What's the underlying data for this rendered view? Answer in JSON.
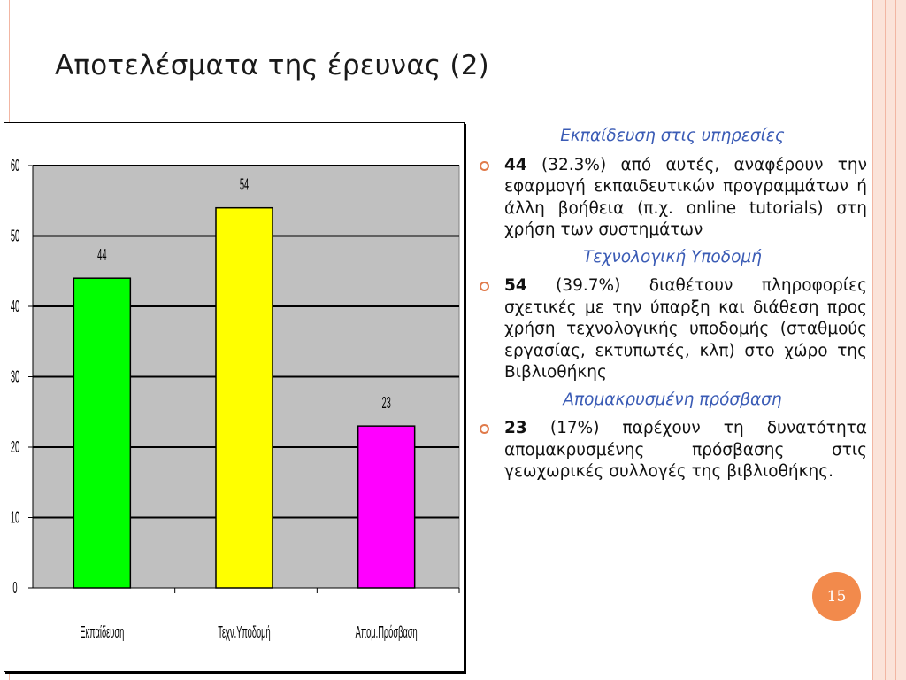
{
  "slide": {
    "title": "Αποτελέσματα της έρευνας (2)",
    "page_number": "15",
    "accent_color": "#f28a4c",
    "heading_color": "#3a5bb5"
  },
  "chart_data": {
    "type": "bar",
    "categories": [
      "Εκπαίδευση",
      "Τεχν.Υποδομή",
      "Απομ.Πρόσβαση"
    ],
    "values": [
      44,
      54,
      23
    ],
    "colors": [
      "#00ff00",
      "#ffff00",
      "#ff00ff"
    ],
    "data_labels": [
      "44",
      "54",
      "23"
    ],
    "y_ticks": [
      "0",
      "10",
      "20",
      "30",
      "40",
      "50",
      "60"
    ],
    "ylim": [
      0,
      60
    ],
    "plot_background": "#c0c0c0",
    "grid": true,
    "legend": "none"
  },
  "sections": [
    {
      "heading": "Εκπαίδευση στις υπηρεσίες",
      "number": "44",
      "text": " (32.3%) από αυτές, αναφέρουν την εφαρμογή εκπαιδευτικών προγραμμάτων ή άλλη βοήθεια (π.χ. online tutorials) στη χρήση των συστημάτων"
    },
    {
      "heading": "Τεχνολογική Υποδομή",
      "number": "54",
      "text": " (39.7%) διαθέτουν πληροφορίες σχετικές με την ύπαρξη και διάθεση προς χρήση τεχνολογικής υποδομής (σταθμούς εργασίας, εκτυπωτές, κλπ) στο χώρο της Βιβλιοθήκης"
    },
    {
      "heading": "Απομακρυσμένη πρόσβαση",
      "number": "23",
      "text": " (17%) παρέχουν τη δυνατότητα απομακρυσμένης πρόσβασης στις γεωχωρικές συλλογές της βιβλιοθήκης."
    }
  ]
}
